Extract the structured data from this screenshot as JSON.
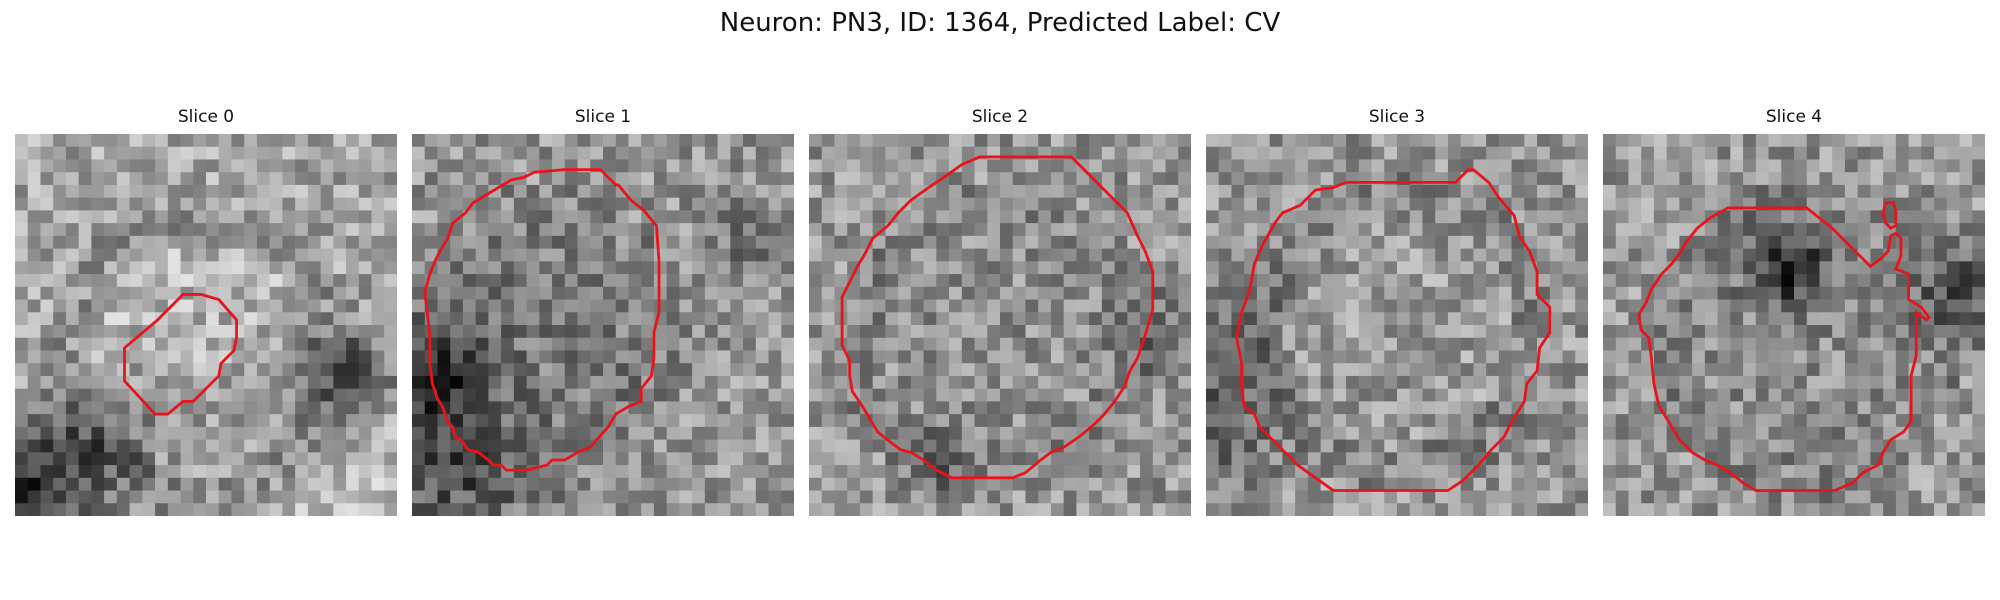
{
  "figure": {
    "title": "Neuron: PN3, ID: 1364, Predicted Label: CV"
  },
  "panels": [
    {
      "title": "Slice 0"
    },
    {
      "title": "Slice 1"
    },
    {
      "title": "Slice 2"
    },
    {
      "title": "Slice 3"
    },
    {
      "title": "Slice 4"
    }
  ],
  "colors": {
    "contour": "#e8141c"
  }
}
